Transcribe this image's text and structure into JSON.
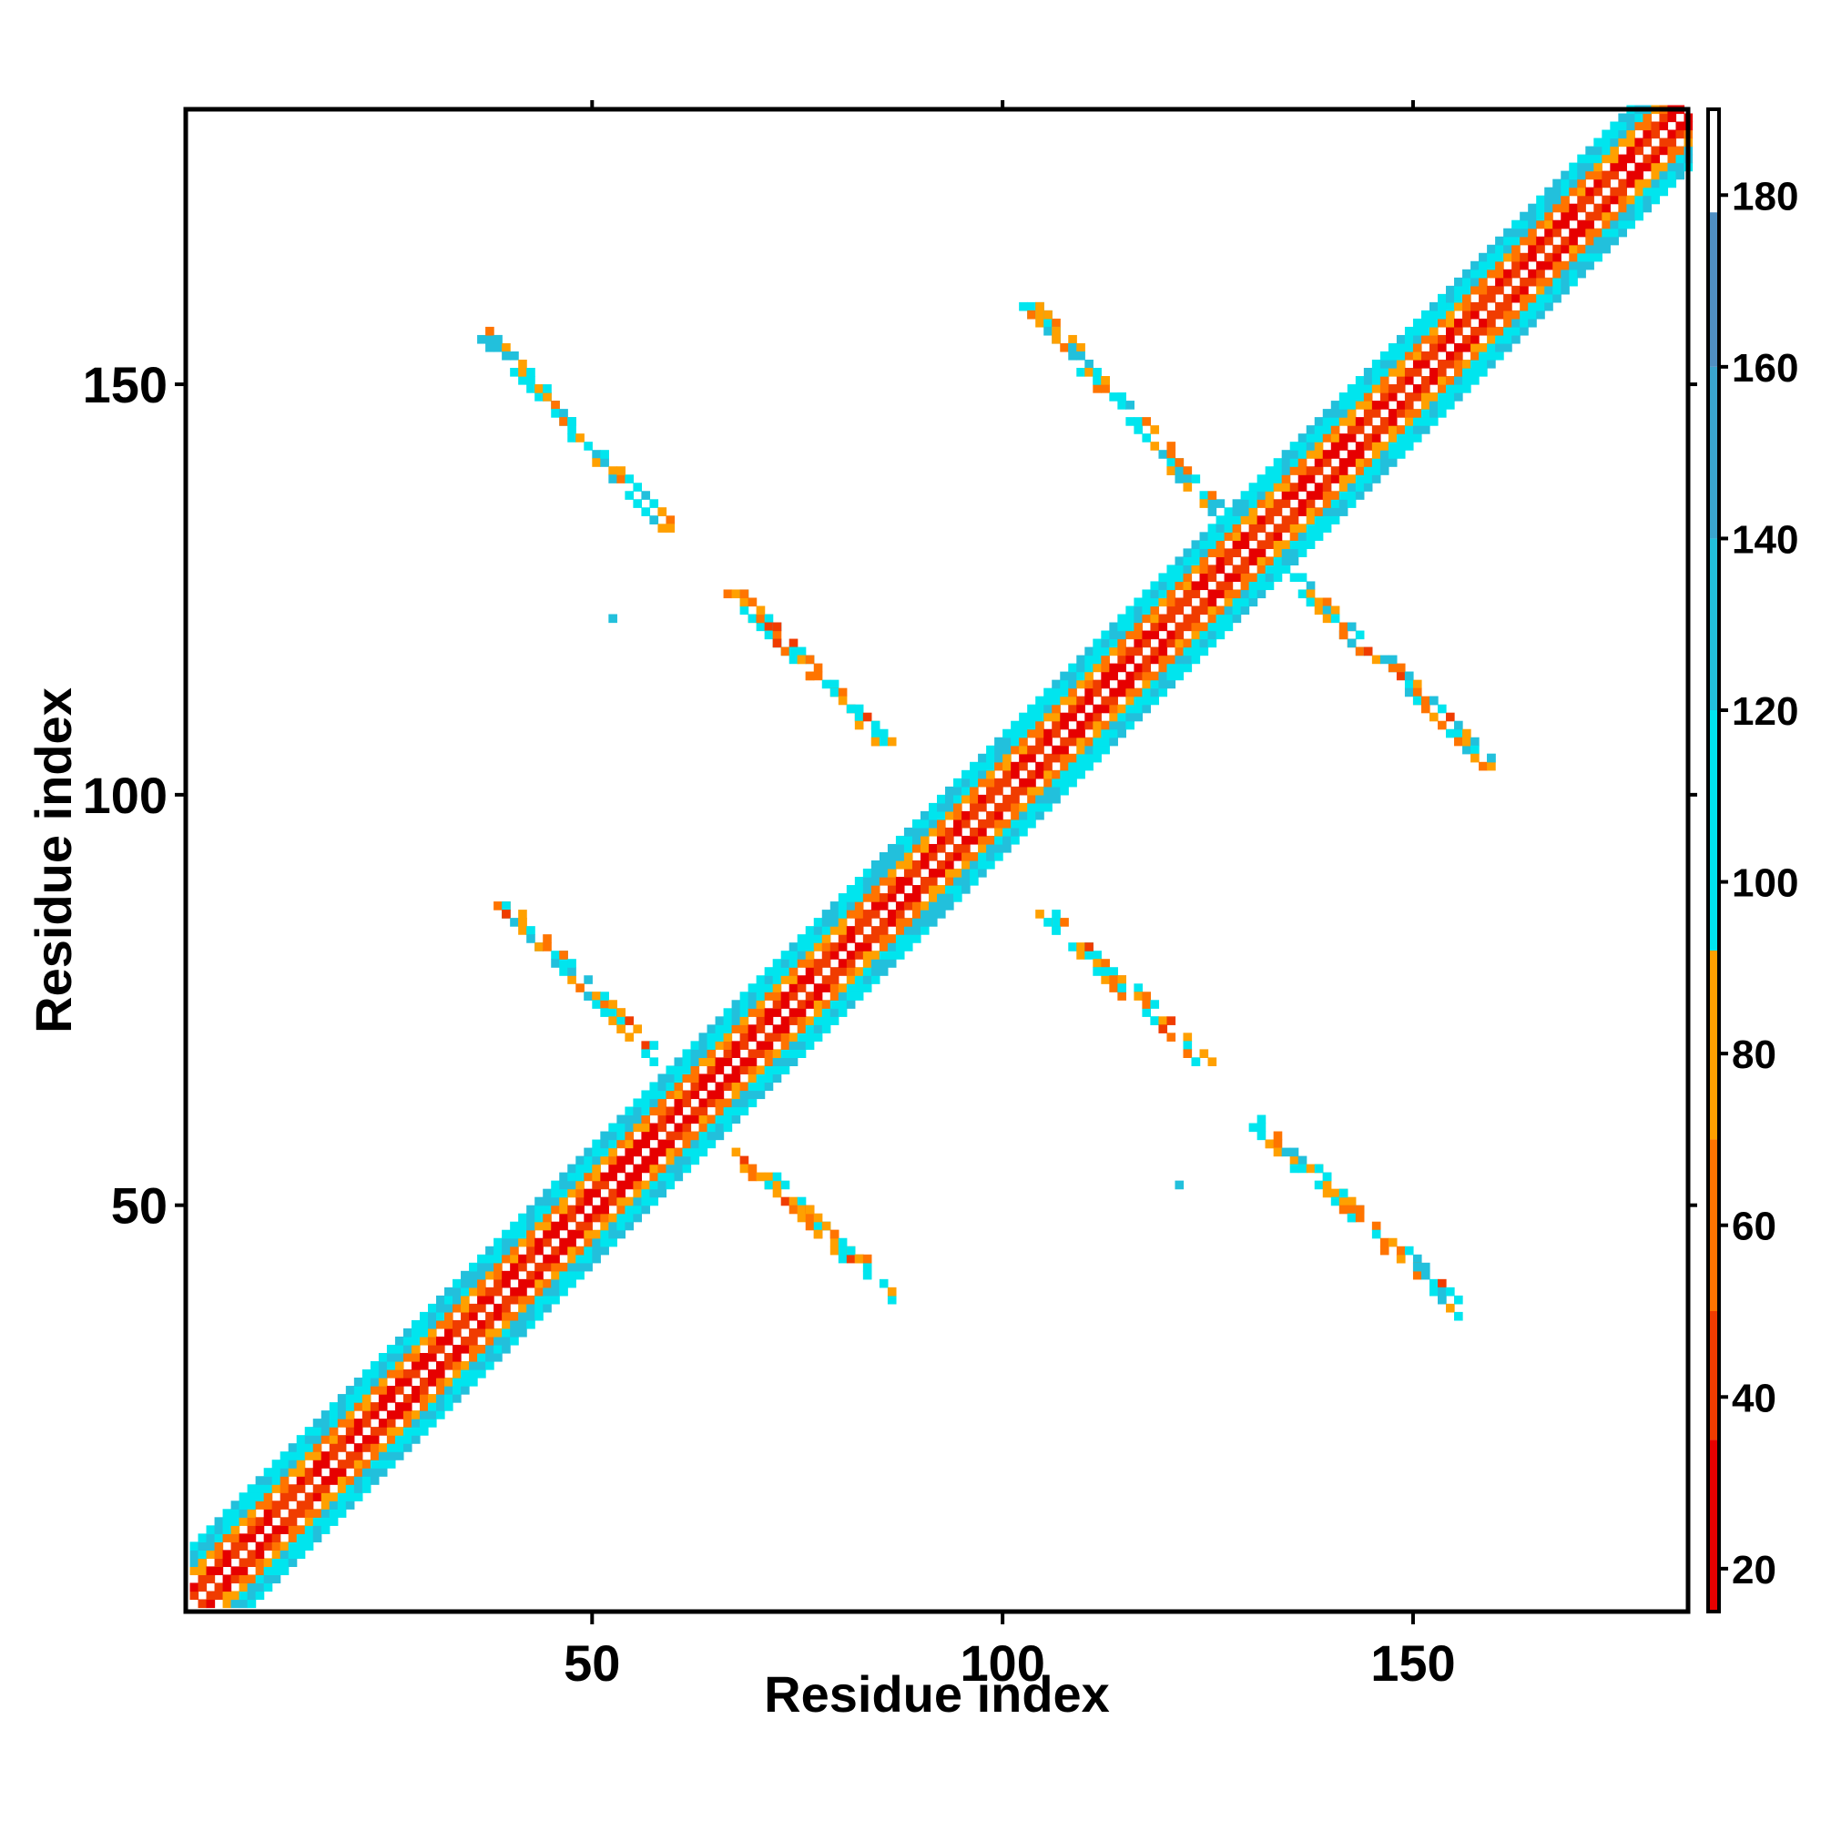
{
  "chart_data": {
    "type": "heatmap",
    "subtype": "residue contact map (symmetric)",
    "xlabel": "Residue index",
    "ylabel": "Residue index",
    "xlim": [
      1,
      183
    ],
    "ylim": [
      1,
      183
    ],
    "x_ticks": [
      50,
      100,
      150
    ],
    "y_ticks": [
      50,
      100,
      150
    ],
    "diagonal_band": {
      "from": 1,
      "to": 183,
      "half_width_residues": 7
    },
    "off_diagonal_segments": [
      {
        "x_from": 37,
        "y_from": 155,
        "x_to": 59,
        "y_to": 132,
        "value_range": [
          60,
          140
        ]
      },
      {
        "x_from": 67,
        "y_from": 124,
        "x_to": 85,
        "y_to": 106,
        "value_range": [
          40,
          120
        ]
      },
      {
        "x_from": 39,
        "y_from": 86,
        "x_to": 57,
        "y_to": 68,
        "value_range": [
          40,
          140
        ]
      },
      {
        "x_from": 67,
        "y_from": 56,
        "x_to": 86,
        "y_to": 39,
        "value_range": [
          40,
          120
        ]
      },
      {
        "x_from": 103,
        "y_from": 159,
        "x_to": 125,
        "y_to": 135,
        "value_range": [
          60,
          140
        ]
      },
      {
        "x_from": 135,
        "y_from": 126,
        "x_to": 159,
        "y_to": 103,
        "value_range": [
          40,
          140
        ]
      },
      {
        "x_from": 105,
        "y_from": 85,
        "x_to": 124,
        "y_to": 67,
        "value_range": [
          40,
          120
        ]
      },
      {
        "x_from": 131,
        "y_from": 59,
        "x_to": 155,
        "y_to": 37,
        "value_range": [
          40,
          140
        ]
      }
    ],
    "isolated_points": [
      {
        "x": 52,
        "y": 121,
        "value": 130
      },
      {
        "x": 121,
        "y": 52,
        "value": 130
      }
    ],
    "colorbar": {
      "min": 15,
      "max": 190,
      "ticks": [
        20,
        40,
        60,
        80,
        100,
        120,
        140,
        160,
        180
      ],
      "bands": [
        {
          "from": 15,
          "to": 35,
          "color": "#e60000"
        },
        {
          "from": 35,
          "to": 50,
          "color": "#f03c00"
        },
        {
          "from": 50,
          "to": 70,
          "color": "#ff7400"
        },
        {
          "from": 70,
          "to": 92,
          "color": "#ffa000"
        },
        {
          "from": 92,
          "to": 120,
          "color": "#00e5ee"
        },
        {
          "from": 120,
          "to": 140,
          "color": "#22c0dc"
        },
        {
          "from": 140,
          "to": 160,
          "color": "#3aa5cf"
        },
        {
          "from": 160,
          "to": 178,
          "color": "#4f8fc3"
        },
        {
          "from": 178,
          "to": 190,
          "color": "#ffffff"
        }
      ]
    },
    "legend": "colorbar-right",
    "grid": false
  }
}
